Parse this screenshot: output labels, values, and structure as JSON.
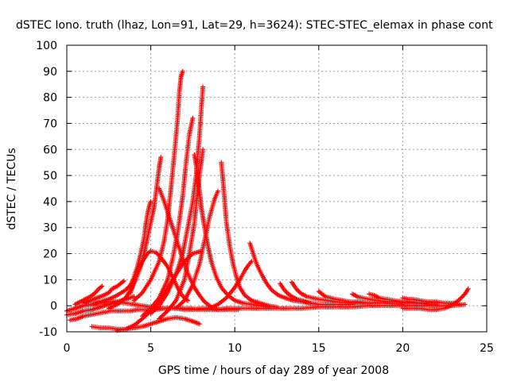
{
  "chart_data": {
    "type": "scatter",
    "title": "dSTEC Iono. truth (lhaz, Lon=91, Lat=29, h=3624): STEC-STEC_elemax in phase cont",
    "xlabel": "GPS time / hours of day 289 of year 2008",
    "ylabel": "dSTEC  / TECUs",
    "xlim": [
      0,
      25
    ],
    "ylim": [
      -10,
      100
    ],
    "x_ticks": [
      0,
      5,
      10,
      15,
      20,
      25
    ],
    "y_ticks": [
      -10,
      0,
      10,
      20,
      30,
      40,
      50,
      60,
      70,
      80,
      90,
      100
    ],
    "grid": true,
    "marker": "+",
    "color": "#ff0000",
    "series": [
      {
        "x": [
          0.0,
          0.5,
          1.0,
          1.5,
          2.0,
          2.5,
          3.0,
          3.5,
          4.0,
          4.5,
          5.0,
          5.5,
          6.0,
          6.5,
          7.0,
          7.5,
          8.0,
          8.5,
          9.0,
          9.5,
          10.0,
          10.5,
          11.0,
          11.5,
          12.0,
          13.0,
          14.0,
          15.0,
          16.0,
          17.0,
          18.0,
          19.0,
          20.0,
          21.0,
          22.0,
          23.0,
          23.7
        ],
        "y": [
          -2.0,
          -1.0,
          0.0,
          0.5,
          1.0,
          1.5,
          1.5,
          1.0,
          0.5,
          0.0,
          -0.5,
          -1.0,
          -1.0,
          -1.0,
          -1.5,
          -1.5,
          -1.0,
          -1.0,
          -1.5,
          -1.0,
          -1.0,
          -1.0,
          -1.0,
          -1.0,
          -1.0,
          -1.0,
          -1.0,
          -0.5,
          -0.5,
          -0.5,
          0.0,
          0.0,
          0.0,
          0.0,
          0.0,
          0.0,
          0.5
        ]
      },
      {
        "x": [
          0.2,
          0.6,
          1.0,
          1.4,
          1.8,
          2.2,
          2.6,
          3.0,
          3.4,
          3.8,
          4.2,
          4.6,
          5.0,
          5.4,
          5.8,
          6.2,
          6.6,
          7.0,
          7.4,
          7.8,
          8.2,
          8.6,
          9.0,
          9.4,
          9.8,
          10.2
        ],
        "y": [
          -5.5,
          -5.0,
          -4.0,
          -3.5,
          -3.0,
          -2.5,
          -2.0,
          -2.0,
          -2.0,
          -2.0,
          -1.5,
          -1.5,
          -1.5,
          -1.5,
          -1.0,
          -1.0,
          -1.0,
          -1.0,
          -1.0,
          -1.5,
          -1.5,
          -1.5,
          -1.5,
          -1.5,
          -1.5,
          -1.5
        ]
      },
      {
        "x": [
          0.5,
          0.8,
          1.1,
          1.4,
          1.7,
          1.9,
          2.1
        ],
        "y": [
          0.5,
          1.5,
          2.5,
          3.5,
          5.0,
          6.5,
          7.5
        ]
      },
      {
        "x": [
          1.0,
          1.4,
          1.8,
          2.2,
          2.5,
          2.7,
          3.0,
          3.2,
          3.4
        ],
        "y": [
          1.0,
          2.0,
          3.0,
          4.0,
          5.0,
          6.5,
          7.5,
          8.5,
          9.5
        ]
      },
      {
        "x": [
          1.5,
          2.0,
          2.5,
          3.0,
          3.5,
          4.0,
          4.5,
          5.0,
          5.5,
          6.0,
          6.5,
          7.0,
          7.5,
          7.9
        ],
        "y": [
          -8.0,
          -8.5,
          -8.5,
          -9.0,
          -9.0,
          -8.5,
          -8.0,
          -7.0,
          -6.0,
          -5.0,
          -4.5,
          -5.0,
          -6.0,
          -7.0
        ]
      },
      {
        "x": [
          1.5,
          2.0,
          2.5,
          3.0,
          3.5,
          3.8,
          4.0,
          4.2,
          4.4,
          4.6,
          4.7,
          4.8,
          4.9,
          5.0
        ],
        "y": [
          0.5,
          1.5,
          2.5,
          4.0,
          6.0,
          8.0,
          11.0,
          15.0,
          20.0,
          26.0,
          31.0,
          35.0,
          38.0,
          40.0
        ]
      },
      {
        "x": [
          2.5,
          3.0,
          3.5,
          3.8,
          4.1,
          4.4,
          4.6,
          4.8,
          5.0,
          5.2,
          5.3,
          5.4,
          5.5,
          5.6
        ],
        "y": [
          -1.0,
          0.5,
          3.0,
          6.0,
          10.0,
          15.0,
          20.0,
          26.0,
          32.0,
          38.0,
          43.0,
          48.0,
          53.0,
          57.0
        ]
      },
      {
        "x": [
          3.0,
          3.5,
          4.0,
          4.5,
          5.0,
          5.5,
          6.0,
          6.5,
          7.0,
          7.5,
          8.0
        ],
        "y": [
          -9.5,
          -9.0,
          -7.5,
          -5.0,
          -2.0,
          2.0,
          7.0,
          12.0,
          17.0,
          20.0,
          21.0
        ]
      },
      {
        "x": [
          3.8,
          4.0,
          4.2,
          4.5,
          4.8,
          5.0,
          5.3,
          5.6,
          6.0,
          6.3,
          6.6,
          6.8,
          7.0,
          7.2
        ],
        "y": [
          5.0,
          9.0,
          13.0,
          17.0,
          20.0,
          21.0,
          20.5,
          18.5,
          15.0,
          11.0,
          7.0,
          4.5,
          3.0,
          2.0
        ]
      },
      {
        "x": [
          4.0,
          4.5,
          5.0,
          5.5,
          5.8,
          6.0,
          6.2,
          6.4,
          6.6,
          6.7,
          6.8,
          6.9
        ],
        "y": [
          2.0,
          5.0,
          10.0,
          17.0,
          25.0,
          33.0,
          45.0,
          58.0,
          72.0,
          82.0,
          88.0,
          90.0
        ]
      },
      {
        "x": [
          5.5,
          5.8,
          6.1,
          6.4,
          6.7,
          7.0,
          7.3,
          7.6,
          7.9,
          8.2,
          8.6,
          9.0
        ],
        "y": [
          45.0,
          40.0,
          34.0,
          28.0,
          22.0,
          16.0,
          11.0,
          7.0,
          4.0,
          1.5,
          -0.5,
          -1.5
        ]
      },
      {
        "x": [
          4.5,
          5.0,
          5.5,
          6.0,
          6.3,
          6.6,
          6.9,
          7.1,
          7.3,
          7.5
        ],
        "y": [
          -4.0,
          -1.0,
          3.0,
          10.0,
          18.0,
          28.0,
          42.0,
          55.0,
          66.0,
          72.0
        ]
      },
      {
        "x": [
          5.0,
          5.5,
          6.0,
          6.5,
          6.9,
          7.2,
          7.5,
          7.7,
          7.8,
          7.9,
          8.0,
          8.1
        ],
        "y": [
          -3.0,
          0.0,
          5.0,
          12.0,
          20.0,
          30.0,
          40.0,
          50.0,
          58.0,
          65.0,
          75.0,
          84.0
        ]
      },
      {
        "x": [
          5.5,
          6.0,
          6.5,
          7.0,
          7.3,
          7.6,
          7.8,
          8.0,
          8.1
        ],
        "y": [
          -5.0,
          -2.0,
          2.0,
          10.0,
          20.0,
          32.0,
          45.0,
          55.0,
          60.0
        ]
      },
      {
        "x": [
          7.6,
          7.7,
          7.8,
          7.9,
          8.0,
          8.2,
          8.4,
          8.6,
          8.9,
          9.2,
          9.6,
          10.0,
          10.5,
          11.0,
          11.5,
          12.0
        ],
        "y": [
          58.0,
          54.0,
          49.0,
          44.0,
          38.0,
          30.0,
          23.0,
          17.0,
          11.0,
          7.0,
          4.0,
          2.0,
          1.0,
          0.5,
          0.0,
          -0.5
        ]
      },
      {
        "x": [
          6.5,
          7.0,
          7.5,
          7.9,
          8.2,
          8.5,
          8.8,
          9.0
        ],
        "y": [
          -1.0,
          2.0,
          8.0,
          16.0,
          25.0,
          34.0,
          41.0,
          44.0
        ]
      },
      {
        "x": [
          9.2,
          9.3,
          9.4,
          9.5,
          9.7,
          9.9,
          10.1,
          10.3,
          10.6,
          11.0,
          11.5,
          12.0,
          12.5
        ],
        "y": [
          55.0,
          48.0,
          40.0,
          32.0,
          23.0,
          16.0,
          11.0,
          7.0,
          4.0,
          2.0,
          1.0,
          0.0,
          -0.5
        ]
      },
      {
        "x": [
          8.5,
          9.0,
          9.5,
          10.0,
          10.3,
          10.6,
          10.8,
          11.0
        ],
        "y": [
          -1.0,
          0.5,
          3.0,
          7.0,
          10.0,
          13.5,
          15.5,
          17.0
        ]
      },
      {
        "x": [
          10.9,
          11.1,
          11.3,
          11.6,
          11.9,
          12.2,
          12.6,
          13.0,
          13.5,
          14.0,
          14.5
        ],
        "y": [
          24.0,
          20.0,
          16.0,
          12.0,
          8.5,
          6.0,
          4.0,
          3.0,
          2.0,
          1.5,
          1.0
        ]
      },
      {
        "x": [
          12.7,
          12.9,
          13.1,
          13.4,
          13.7,
          14.0,
          14.5,
          15.0,
          15.5,
          16.0,
          16.5,
          17.0
        ],
        "y": [
          8.5,
          6.5,
          5.0,
          3.5,
          2.5,
          2.0,
          1.0,
          0.5,
          0.5,
          0.5,
          0.5,
          0.5
        ]
      },
      {
        "x": [
          13.4,
          13.6,
          13.8,
          14.0,
          14.3,
          14.6,
          15.0,
          15.5,
          16.0,
          17.0,
          18.0
        ],
        "y": [
          9.0,
          7.0,
          5.5,
          4.5,
          3.5,
          3.0,
          2.5,
          2.0,
          1.5,
          1.0,
          1.0
        ]
      },
      {
        "x": [
          15.0,
          15.2,
          15.4,
          15.7,
          16.0,
          16.4,
          16.8,
          17.3,
          18.0,
          19.0,
          20.0
        ],
        "y": [
          5.5,
          4.5,
          3.5,
          3.0,
          2.5,
          2.0,
          1.5,
          1.5,
          1.0,
          1.0,
          0.5
        ]
      },
      {
        "x": [
          17.0,
          17.3,
          17.6,
          18.0,
          18.5,
          19.0,
          19.5,
          20.0,
          20.5,
          21.0,
          21.5,
          22.0
        ],
        "y": [
          4.5,
          3.5,
          3.0,
          2.5,
          2.0,
          1.5,
          1.5,
          1.0,
          1.0,
          1.0,
          0.5,
          0.5
        ]
      },
      {
        "x": [
          18.0,
          18.3,
          18.6,
          19.0,
          19.5,
          20.0,
          20.5,
          21.0,
          21.5,
          22.0
        ],
        "y": [
          4.5,
          4.0,
          3.0,
          2.5,
          2.0,
          1.5,
          1.5,
          1.0,
          1.0,
          1.0
        ]
      },
      {
        "x": [
          20.0,
          20.3,
          20.6,
          21.0,
          21.5,
          22.0,
          22.5,
          23.0,
          23.4
        ],
        "y": [
          3.0,
          2.5,
          2.5,
          2.0,
          1.5,
          1.5,
          1.0,
          1.0,
          0.5
        ]
      },
      {
        "x": [
          20.0,
          20.5,
          21.0,
          21.5,
          22.0,
          22.5,
          23.0,
          23.4,
          23.7,
          23.9
        ],
        "y": [
          -1.0,
          -1.0,
          -1.0,
          -1.5,
          -1.5,
          -1.0,
          0.5,
          2.5,
          4.5,
          6.5
        ]
      },
      {
        "x": [
          0.0,
          0.5,
          1.0,
          1.5,
          2.0,
          2.5,
          3.0,
          3.5,
          4.0
        ],
        "y": [
          -3.5,
          -3.0,
          -2.0,
          -1.5,
          -0.5,
          0.5,
          1.5,
          2.5,
          3.5
        ]
      }
    ]
  }
}
